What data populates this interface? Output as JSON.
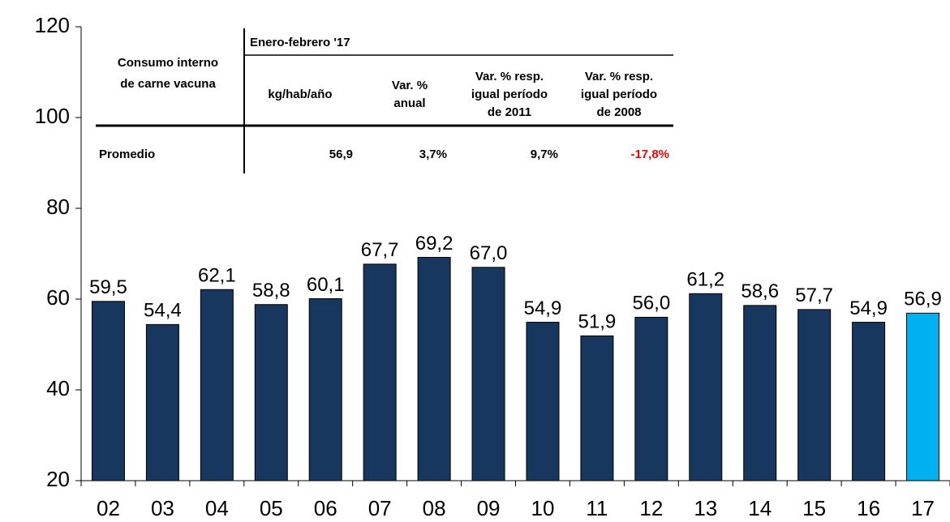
{
  "chart_data": {
    "type": "bar",
    "categories": [
      "02",
      "03",
      "04",
      "05",
      "06",
      "07",
      "08",
      "09",
      "10",
      "11",
      "12",
      "13",
      "14",
      "15",
      "16",
      "17"
    ],
    "values": [
      59.5,
      54.4,
      62.1,
      58.8,
      60.1,
      67.7,
      69.2,
      67.0,
      54.9,
      51.9,
      56.0,
      61.2,
      58.6,
      57.7,
      54.9,
      56.9
    ],
    "value_labels": [
      "59,5",
      "54,4",
      "62,1",
      "58,8",
      "60,1",
      "67,7",
      "69,2",
      "67,0",
      "54,9",
      "51,9",
      "56,0",
      "61,2",
      "58,6",
      "57,7",
      "54,9",
      "56,9"
    ],
    "colors": [
      "#17375e",
      "#17375e",
      "#17375e",
      "#17375e",
      "#17375e",
      "#17375e",
      "#17375e",
      "#17375e",
      "#17375e",
      "#17375e",
      "#17375e",
      "#17375e",
      "#17375e",
      "#17375e",
      "#17375e",
      "#00b0f0"
    ],
    "ylim": [
      20,
      120
    ],
    "yticks": [
      20,
      40,
      60,
      80,
      100,
      120
    ],
    "grid": false
  },
  "table": {
    "row_header": [
      "Consumo interno",
      "de carne vacuna"
    ],
    "group_header": "Enero-febrero '17",
    "columns": [
      [
        "kg/hab/año"
      ],
      [
        "Var. %",
        "anual"
      ],
      [
        "Var. % resp.",
        "igual período",
        "de 2011"
      ],
      [
        "Var. % resp.",
        "igual período",
        "de 2008"
      ]
    ],
    "rows": [
      [
        "Promedio",
        "56,9",
        "3,7%",
        "9,7%",
        "-17,8%"
      ]
    ]
  }
}
